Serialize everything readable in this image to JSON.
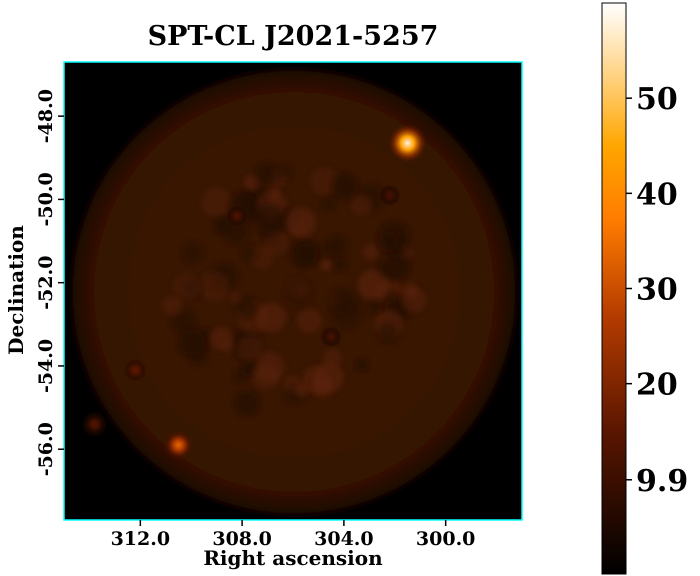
{
  "chart_data": {
    "type": "heatmap",
    "title": "SPT-CL J2021-5257",
    "xlabel": "Right ascension",
    "ylabel": "Declination",
    "x_ticks": [
      "312.0",
      "308.0",
      "304.0",
      "300.0"
    ],
    "x_tick_values": [
      312.0,
      308.0,
      304.0,
      300.0
    ],
    "y_ticks": [
      "-48.0",
      "-50.0",
      "-52.0",
      "-54.0",
      "-56.0"
    ],
    "y_tick_values": [
      -48.0,
      -50.0,
      -52.0,
      -54.0,
      -56.0
    ],
    "xlim": [
      315.0,
      297.0
    ],
    "ylim": [
      -57.7,
      -46.7
    ],
    "field_center": [
      306.0,
      -52.2
    ],
    "field_radius_deg": 5.5,
    "colormap": "afmhot",
    "frame_color": "#00ffff",
    "colorbar": {
      "range": [
        0,
        60
      ],
      "ticks": [
        "9.9",
        "20",
        "30",
        "40",
        "50"
      ],
      "tick_values": [
        9.9,
        20,
        30,
        40,
        50
      ]
    },
    "sources": [
      {
        "ra": 301.5,
        "dec": -48.65,
        "value": 58
      },
      {
        "ra": 310.5,
        "dec": -55.9,
        "value": 34
      },
      {
        "ra": 312.2,
        "dec": -54.1,
        "value": 16
      },
      {
        "ra": 313.8,
        "dec": -55.4,
        "value": 14
      },
      {
        "ra": 308.2,
        "dec": -50.4,
        "value": 13
      },
      {
        "ra": 302.2,
        "dec": -49.9,
        "value": 12
      },
      {
        "ra": 304.5,
        "dec": -53.3,
        "value": 12
      }
    ]
  }
}
